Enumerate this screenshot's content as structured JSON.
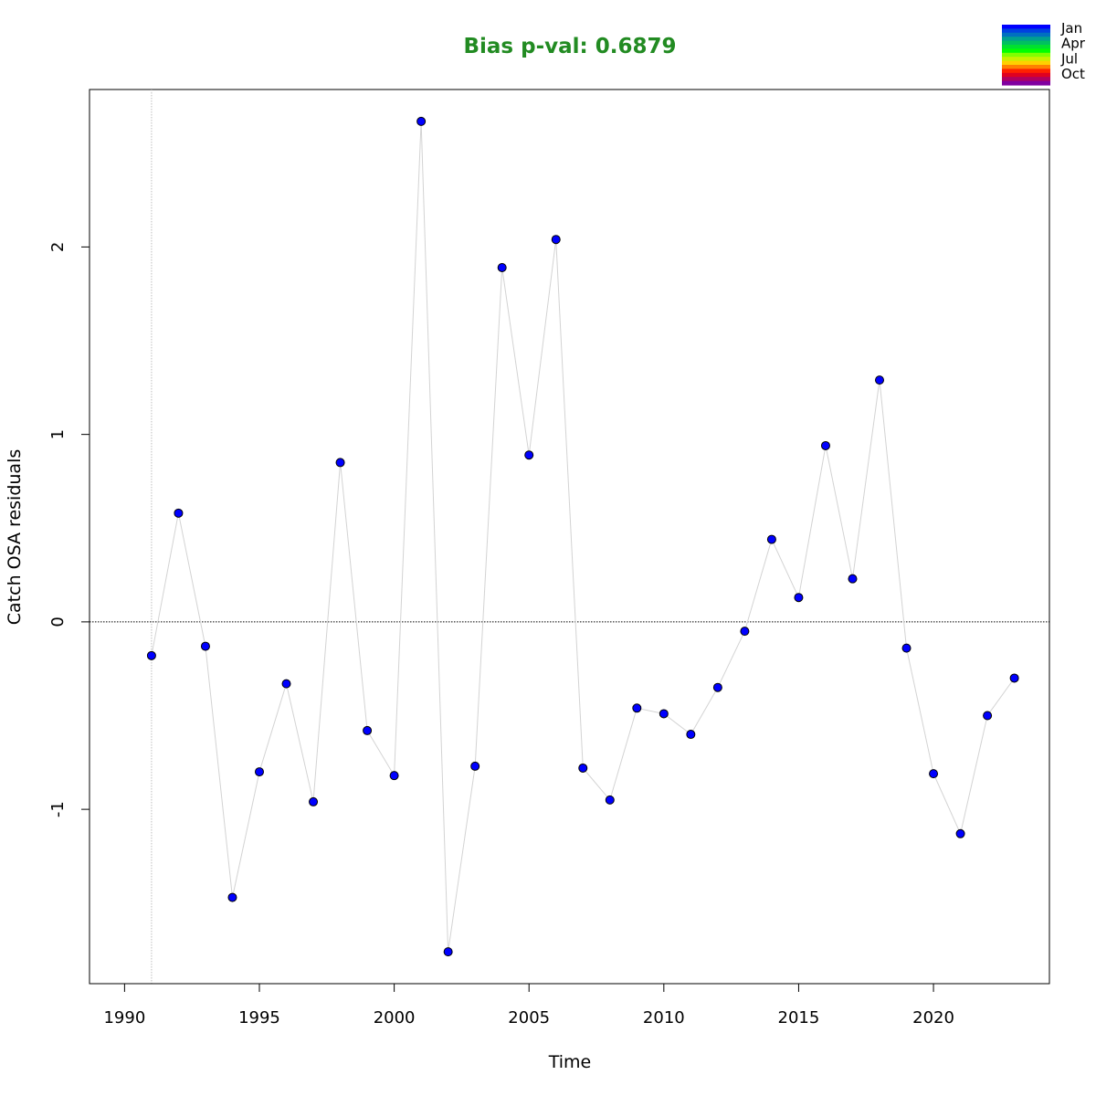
{
  "chart_data": {
    "type": "scatter",
    "title": "Bias p-val: 0.6879",
    "title_color": "#228B22",
    "xlabel": "Time",
    "ylabel": "Catch OSA residuals",
    "xlim": [
      1988.7,
      2024.3
    ],
    "ylim": [
      -1.93,
      2.84
    ],
    "x_ticks": [
      1990,
      1995,
      2000,
      2005,
      2010,
      2015,
      2020
    ],
    "y_ticks": [
      -1,
      0,
      1,
      2
    ],
    "x_tick_labels": [
      "1990",
      "1995",
      "2000",
      "2005",
      "2010",
      "2015",
      "2020"
    ],
    "y_tick_labels": [
      "-1",
      "0",
      "1",
      "2"
    ],
    "reference_line_y": 0,
    "reference_line_x": 1991,
    "point_color": "#0000FF",
    "line_color": "#D3D3D3",
    "grid": false,
    "legend_position": "top-right",
    "legend": {
      "labels": [
        "Jan",
        "Apr",
        "Jul",
        "Oct"
      ],
      "colors": [
        "#0000FF",
        "#0040E0",
        "#0070C0",
        "#00A090",
        "#00C060",
        "#00E030",
        "#00FF00",
        "#80FF00",
        "#C8F000",
        "#FFD000",
        "#FF8000",
        "#FF2000",
        "#E00020",
        "#B00060",
        "#8000A0"
      ]
    },
    "series": [
      {
        "x": [
          1991,
          1992,
          1993,
          1994,
          1995,
          1996,
          1997,
          1998,
          1999,
          2000,
          2001,
          2002,
          2003,
          2004,
          2005,
          2006,
          2007,
          2008,
          2009,
          2010,
          2011,
          2012,
          2013,
          2014,
          2015,
          2016,
          2017,
          2018,
          2019,
          2020,
          2021,
          2022,
          2023
        ],
        "y": [
          -0.18,
          0.58,
          -0.13,
          -1.47,
          -0.8,
          -0.33,
          -0.96,
          0.85,
          -0.58,
          -0.82,
          2.67,
          -1.76,
          -0.77,
          1.89,
          0.89,
          2.04,
          -0.78,
          -0.95,
          -0.46,
          -0.49,
          -0.6,
          -0.35,
          -0.05,
          0.44,
          0.13,
          0.94,
          0.23,
          1.29,
          -0.14,
          -0.81,
          -1.13,
          -0.5,
          -0.3
        ]
      }
    ]
  }
}
